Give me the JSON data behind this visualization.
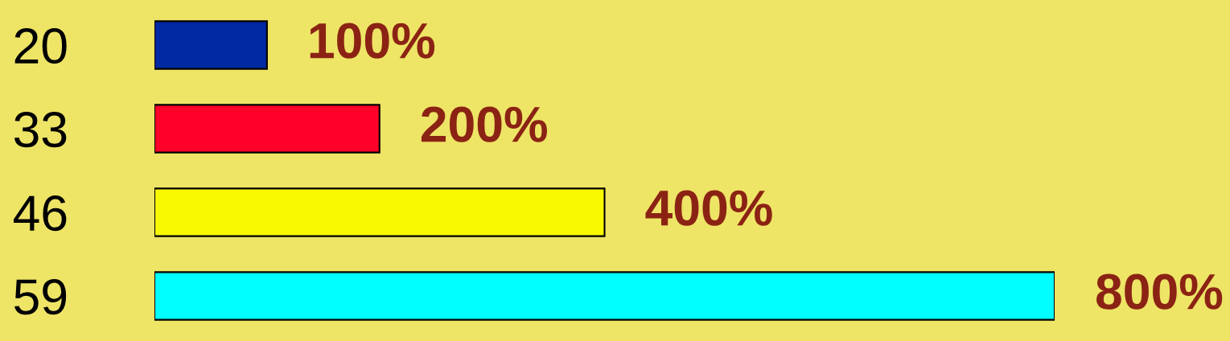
{
  "chart_data": {
    "type": "bar",
    "orientation": "horizontal",
    "tick_labels": "y",
    "categories": [
      "20",
      "33",
      "46",
      "59"
    ],
    "values": [
      100,
      200,
      400,
      800
    ],
    "colors": [
      "#0029a3",
      "#ff0028",
      "#f8f800",
      "#00ffff"
    ],
    "xlim": [
      0,
      800
    ],
    "value_labels": [
      "100%",
      "200%",
      "400%",
      "800%"
    ]
  }
}
